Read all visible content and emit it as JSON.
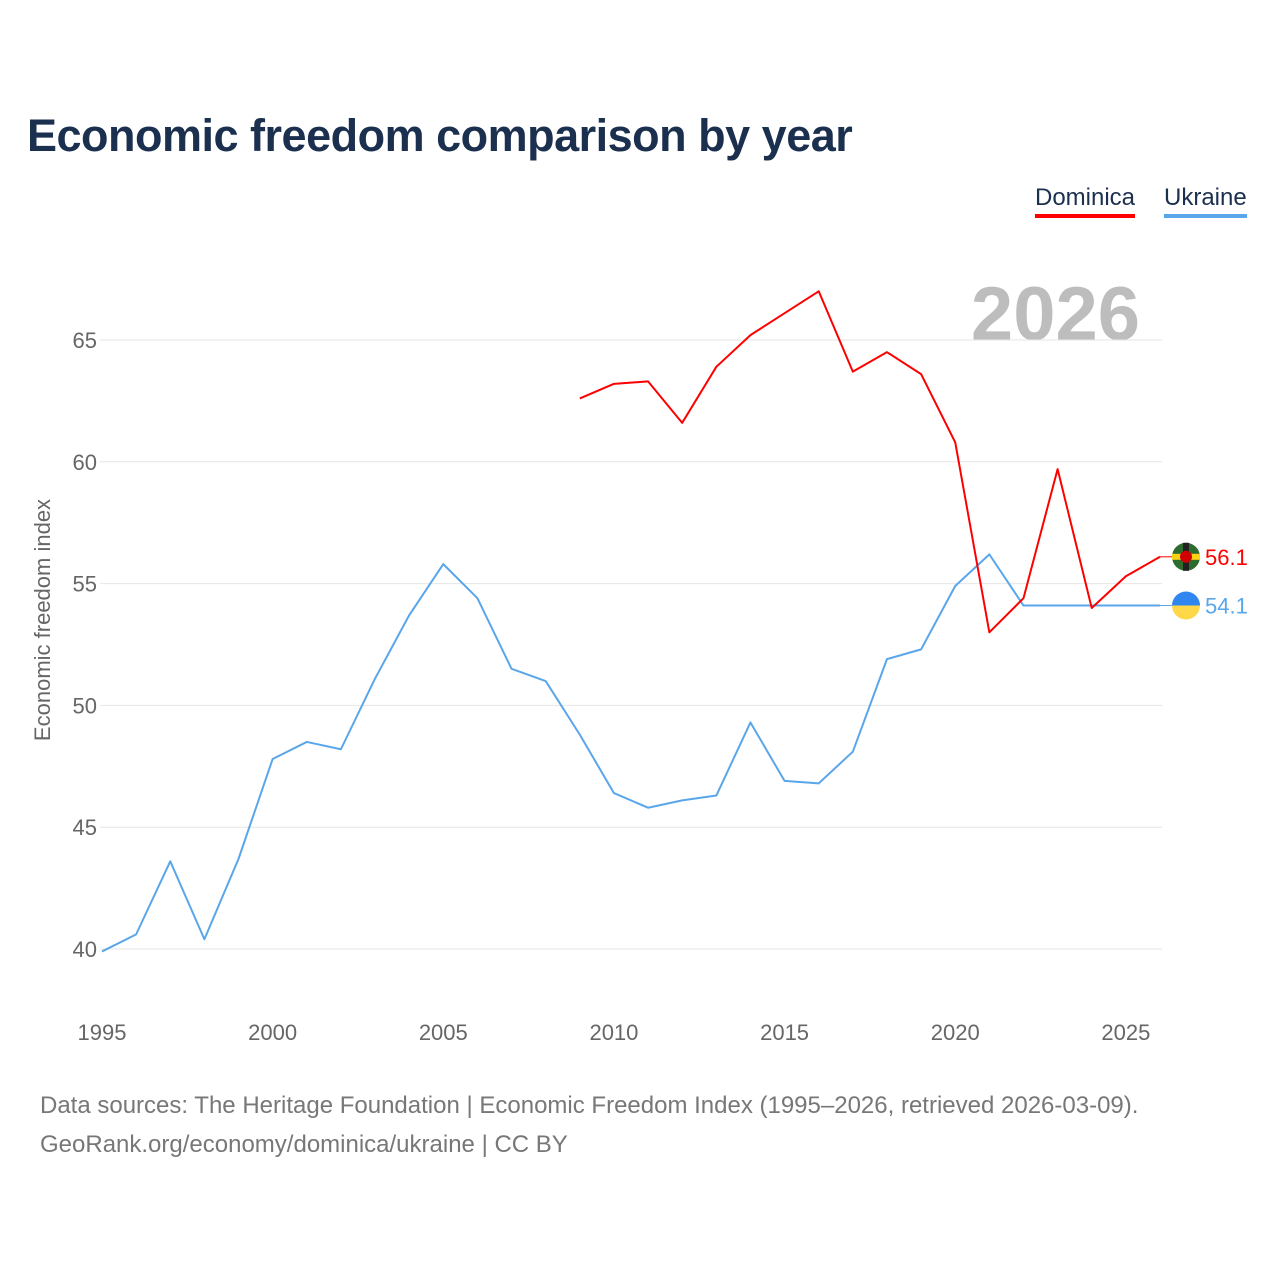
{
  "chart_data": {
    "type": "line",
    "title": "Economic freedom comparison by year",
    "xlabel": "",
    "ylabel": "Economic freedom index",
    "xlim": [
      1995,
      2026
    ],
    "ylim": [
      37.5,
      67.5
    ],
    "yticks": [
      40,
      45,
      50,
      55,
      60,
      65
    ],
    "xticks": [
      1995,
      2000,
      2005,
      2010,
      2015,
      2020,
      2025
    ],
    "grid": true,
    "legend_position": "top-right",
    "year_watermark": "2026",
    "series": [
      {
        "name": "Dominica",
        "color": "#ff0000",
        "end_label": "56.1",
        "x": [
          2009,
          2010,
          2011,
          2012,
          2013,
          2014,
          2015,
          2016,
          2017,
          2018,
          2019,
          2020,
          2021,
          2022,
          2023,
          2024,
          2025,
          2026
        ],
        "values": [
          62.6,
          63.2,
          63.3,
          61.6,
          63.9,
          65.2,
          66.1,
          67.0,
          63.7,
          64.5,
          63.6,
          60.8,
          53.0,
          54.4,
          59.7,
          54.0,
          55.3,
          56.1
        ]
      },
      {
        "name": "Ukraine",
        "color": "#5aa6ea",
        "end_label": "54.1",
        "x": [
          1995,
          1996,
          1997,
          1998,
          1999,
          2000,
          2001,
          2002,
          2003,
          2004,
          2005,
          2006,
          2007,
          2008,
          2009,
          2010,
          2011,
          2012,
          2013,
          2014,
          2015,
          2016,
          2017,
          2018,
          2019,
          2020,
          2021,
          2022,
          2023,
          2024,
          2025,
          2026
        ],
        "values": [
          39.9,
          40.6,
          43.6,
          40.4,
          43.7,
          47.8,
          48.5,
          48.2,
          51.1,
          53.7,
          55.8,
          54.4,
          51.5,
          51.0,
          48.8,
          46.4,
          45.8,
          46.1,
          46.3,
          49.3,
          46.9,
          46.8,
          48.1,
          51.9,
          52.3,
          54.9,
          56.2,
          54.1,
          54.1,
          54.1,
          54.1,
          54.1
        ]
      }
    ]
  },
  "footer": {
    "line1": "Data sources: The Heritage Foundation | Economic Freedom Index (1995–2026, retrieved 2026-03-09).",
    "line2": "GeoRank.org/economy/dominica/ukraine | CC BY"
  }
}
